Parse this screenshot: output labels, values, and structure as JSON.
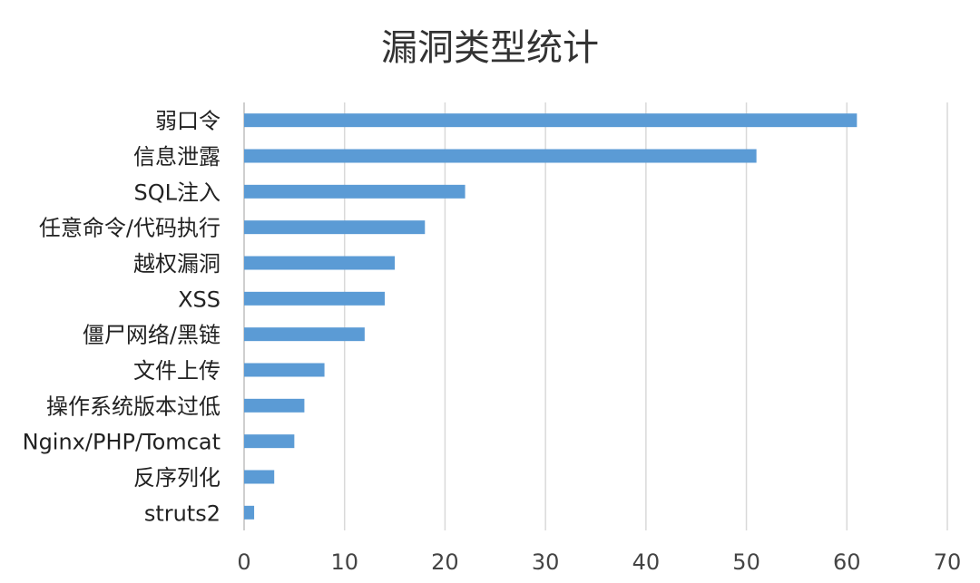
{
  "chart_data": {
    "type": "bar",
    "orientation": "horizontal",
    "title": "漏洞类型统计",
    "categories": [
      "弱口令",
      "信息泄露",
      "SQL注入",
      "任意命令/代码执行",
      "越权漏洞",
      "XSS",
      "僵尸网络/黑链",
      "文件上传",
      "操作系统版本过低",
      "Nginx/PHP/Tomcat",
      "反序列化",
      "struts2"
    ],
    "values": [
      61,
      51,
      22,
      18,
      15,
      14,
      12,
      8,
      6,
      5,
      3,
      1
    ],
    "xlim": [
      0,
      70
    ],
    "xticks": [
      "0",
      "10",
      "20",
      "30",
      "40",
      "50",
      "60",
      "70"
    ],
    "grid": true,
    "legend": "none",
    "bar_color": "#5b9bd5",
    "grid_color": "#d9d9d9"
  }
}
